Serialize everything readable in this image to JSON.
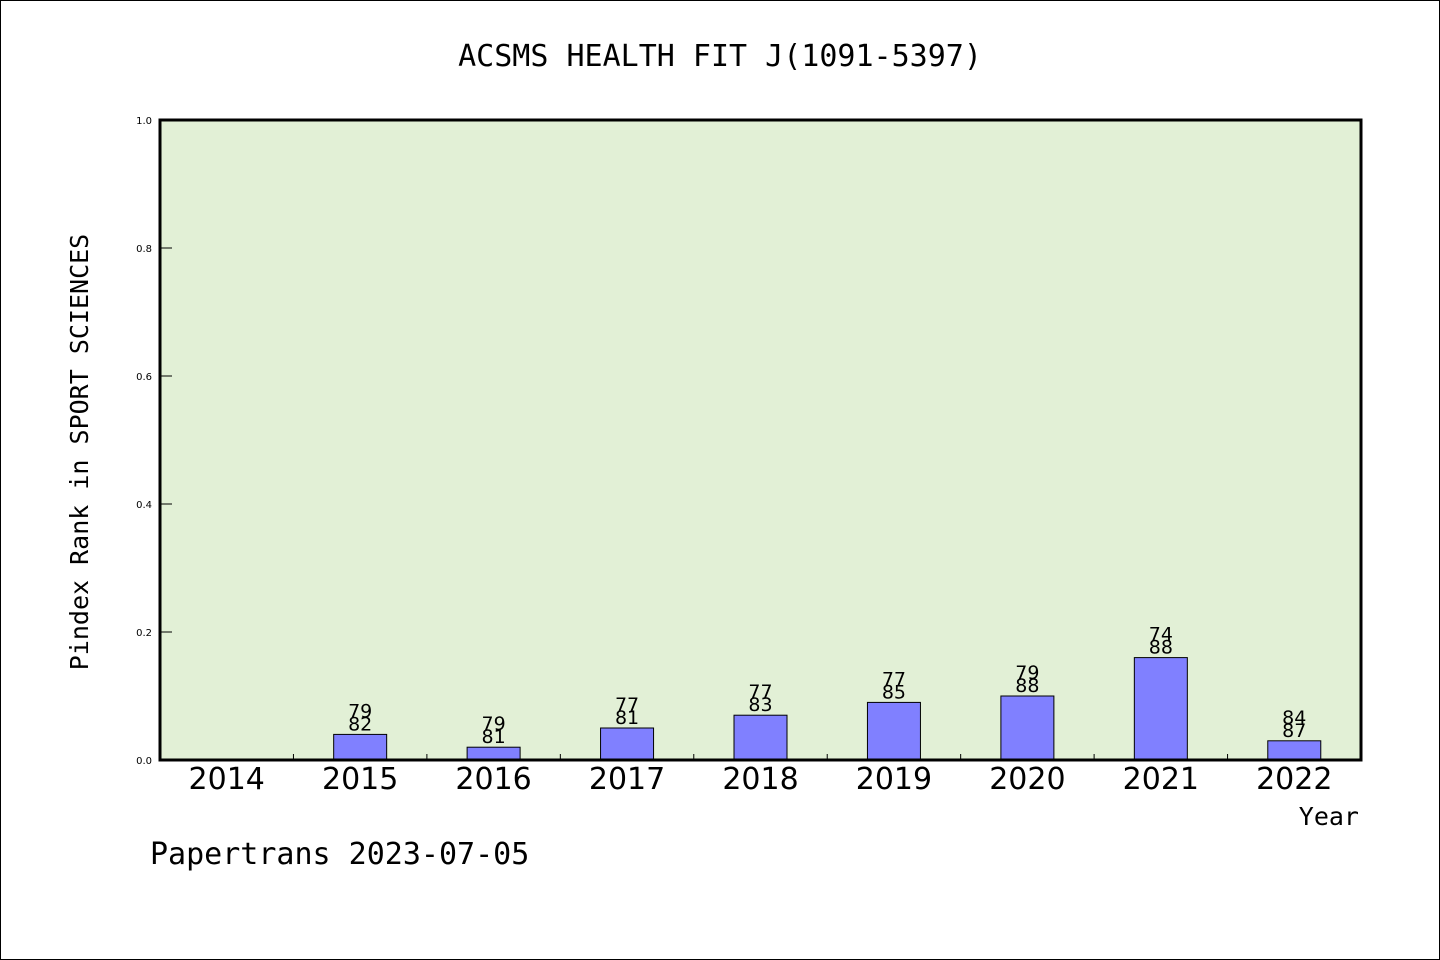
{
  "chart_data": {
    "type": "bar",
    "title": "ACSMS HEALTH FIT J(1091-5397)",
    "xlabel": "Year",
    "ylabel": "Pindex Rank in SPORT SCIENCES",
    "ylim": [
      0,
      1.0
    ],
    "yticks": [
      "0.0",
      "0.2",
      "0.4",
      "0.6",
      "0.8",
      "1.0"
    ],
    "categories": [
      "2014",
      "2015",
      "2016",
      "2017",
      "2018",
      "2019",
      "2020",
      "2021",
      "2022"
    ],
    "values": [
      null,
      0.04,
      0.02,
      0.05,
      0.07,
      0.09,
      0.1,
      0.16,
      0.03
    ],
    "labels_top": [
      "",
      "79",
      "79",
      "77",
      "77",
      "77",
      "79",
      "74",
      "84"
    ],
    "labels_bottom": [
      "",
      "82",
      "81",
      "81",
      "83",
      "85",
      "88",
      "88",
      "87"
    ],
    "grid": false,
    "colors": {
      "plot_bg": "#e2f0d6",
      "bar": "#8080ff",
      "axis": "#000000"
    }
  },
  "footer": "Papertrans 2023-07-05"
}
